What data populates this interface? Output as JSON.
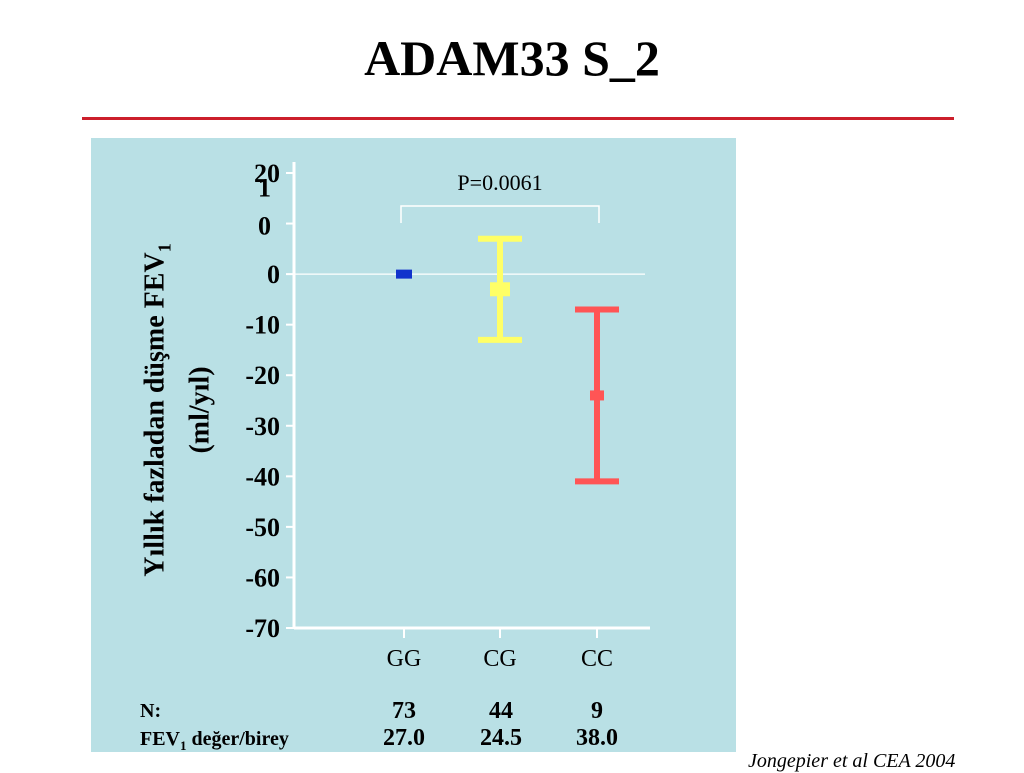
{
  "slide": {
    "title": "ADAM33 S_2",
    "rule_color": "#cc1f2b",
    "panel_color": "#b9e0e5",
    "citation": "Jongepier et al CEA 2004"
  },
  "chart_data": {
    "type": "scatter",
    "subtype": "error-bar",
    "ylabel_main": "Yıllık fazladan düşme FEV",
    "ylabel_sub": "1",
    "ylabel_unit": "(ml/yıl)",
    "ylim": [
      -70,
      20
    ],
    "yticks": [
      20,
      10,
      0,
      -10,
      -20,
      -30,
      -40,
      -50,
      -60,
      -70
    ],
    "ytick_labels": [
      "20",
      "1\n0",
      "0",
      "-10",
      "-20",
      "-30",
      "-40",
      "-50",
      "-60",
      "-70"
    ],
    "categories": [
      "GG",
      "CG",
      "CC"
    ],
    "series": [
      {
        "category": "GG",
        "value": 0,
        "lower": 0,
        "upper": 0,
        "color": "#1133cc"
      },
      {
        "category": "CG",
        "value": -3,
        "lower": -13,
        "upper": 7,
        "color": "#ffff66"
      },
      {
        "category": "CC",
        "value": -24,
        "lower": -41,
        "upper": -7,
        "color": "#ff5555"
      }
    ],
    "annotation": {
      "text": "P=0.0061",
      "from": "GG",
      "to": "CC"
    },
    "zero_line": true,
    "grid": false
  },
  "table": {
    "n_label": "N:",
    "fev_label_main": "FEV",
    "fev_label_sub": "1",
    "fev_label_rest": " değer/birey",
    "n_values": [
      "73",
      "44",
      "9"
    ],
    "fev_values": [
      "27.0",
      "24.5",
      "38.0"
    ]
  }
}
